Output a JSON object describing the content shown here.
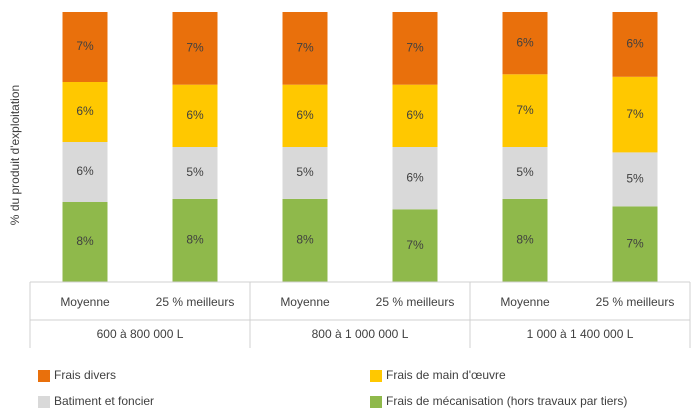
{
  "chart_data": {
    "type": "stacked_bar_100",
    "y_label": "% du produit d'exploitation",
    "categories": [
      "Moyenne",
      "25 % meilleurs",
      "Moyenne",
      "25 % meilleurs",
      "Moyenne",
      "25 % meilleurs"
    ],
    "groups": [
      "600 à 800 000 L",
      "800 à 1 000 000 L",
      "1 000 à 1 400 000 L"
    ],
    "series": [
      {
        "name": "Frais de mécanisation (hors travaux par tiers)",
        "color": "#8fb94b",
        "values": [
          8,
          8,
          8,
          7,
          8,
          7
        ],
        "value_labels": [
          "8%",
          "8%",
          "8%",
          "7%",
          "8%",
          "7%"
        ]
      },
      {
        "name": "Batiment et foncier",
        "color": "#d9d9d9",
        "values": [
          6,
          5,
          5,
          6,
          5,
          5
        ],
        "value_labels": [
          "6%",
          "5%",
          "5%",
          "6%",
          "5%",
          "5%"
        ]
      },
      {
        "name": "Frais de main d'œuvre",
        "color": "#ffc800",
        "values": [
          6,
          6,
          6,
          6,
          7,
          7
        ],
        "value_labels": [
          "6%",
          "6%",
          "6%",
          "6%",
          "7%",
          "7%"
        ]
      },
      {
        "name": "Frais divers",
        "color": "#e9700c",
        "values": [
          7,
          7,
          7,
          7,
          6,
          6
        ],
        "value_labels": [
          "7%",
          "7%",
          "7%",
          "7%",
          "6%",
          "6%"
        ]
      }
    ]
  }
}
